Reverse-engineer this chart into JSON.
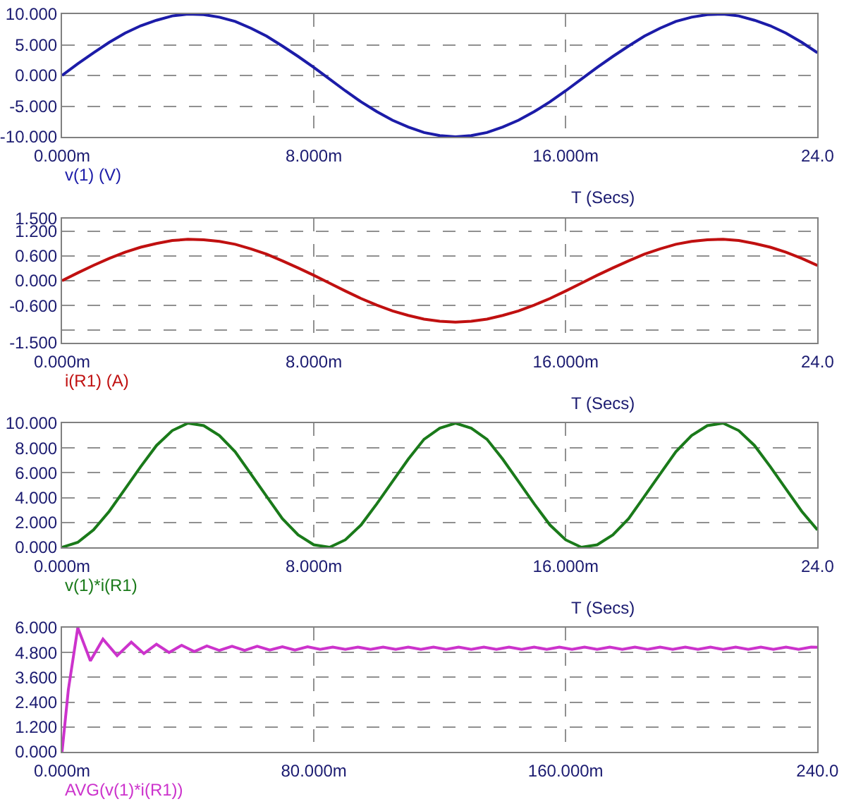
{
  "chart_data": [
    {
      "type": "line",
      "xlabel": "T (Secs)",
      "grid": true,
      "x": [
        0,
        0.5,
        1,
        1.5,
        2,
        2.5,
        3,
        3.5,
        4,
        4.5,
        5,
        5.5,
        6,
        6.5,
        7,
        7.5,
        8,
        8.5,
        9,
        9.5,
        10,
        10.5,
        11,
        11.5,
        12,
        12.5,
        13,
        13.5,
        14,
        14.5,
        15,
        15.5,
        16,
        16.5,
        17,
        17.5,
        18,
        18.5,
        19,
        19.5,
        20,
        20.5,
        21,
        21.5,
        22,
        22.5,
        23,
        23.5,
        24
      ],
      "series": [
        {
          "name": "v(1) (V)",
          "color": "#1c1ca8",
          "values": [
            0,
            1.9,
            3.7,
            5.4,
            6.9,
            8.1,
            9.0,
            9.7,
            10.0,
            9.9,
            9.5,
            8.8,
            7.7,
            6.4,
            4.8,
            3.1,
            1.3,
            -0.6,
            -2.5,
            -4.3,
            -5.9,
            -7.3,
            -8.4,
            -9.3,
            -9.8,
            -10.0,
            -9.8,
            -9.3,
            -8.4,
            -7.3,
            -5.9,
            -4.3,
            -2.5,
            -0.6,
            1.3,
            3.1,
            4.8,
            6.4,
            7.7,
            8.8,
            9.5,
            9.9,
            10.0,
            9.7,
            9.0,
            8.1,
            6.9,
            5.4,
            3.7
          ]
        }
      ],
      "xlim": [
        0,
        24
      ],
      "xticks": [
        {
          "value": 0,
          "label": "0.000m"
        },
        {
          "value": 8,
          "label": "8.000m"
        },
        {
          "value": 16,
          "label": "16.000m"
        },
        {
          "value": 24,
          "label": "24.0"
        }
      ],
      "ylim": [
        -10,
        10
      ],
      "yticks": [
        {
          "value": -10,
          "label": "-10.000"
        },
        {
          "value": -5,
          "label": "-5.000"
        },
        {
          "value": 0,
          "label": "0.000"
        },
        {
          "value": 5,
          "label": "5.000"
        },
        {
          "value": 10,
          "label": "10.000"
        }
      ]
    },
    {
      "type": "line",
      "xlabel": "T (Secs)",
      "grid": true,
      "x": [
        0,
        0.5,
        1,
        1.5,
        2,
        2.5,
        3,
        3.5,
        4,
        4.5,
        5,
        5.5,
        6,
        6.5,
        7,
        7.5,
        8,
        8.5,
        9,
        9.5,
        10,
        10.5,
        11,
        11.5,
        12,
        12.5,
        13,
        13.5,
        14,
        14.5,
        15,
        15.5,
        16,
        16.5,
        17,
        17.5,
        18,
        18.5,
        19,
        19.5,
        20,
        20.5,
        21,
        21.5,
        22,
        22.5,
        23,
        23.5,
        24
      ],
      "series": [
        {
          "name": "i(R1) (A)",
          "color": "#c01010",
          "values": [
            0,
            0.19,
            0.37,
            0.54,
            0.69,
            0.81,
            0.9,
            0.97,
            1.0,
            0.99,
            0.95,
            0.88,
            0.77,
            0.64,
            0.48,
            0.31,
            0.13,
            -0.06,
            -0.25,
            -0.43,
            -0.59,
            -0.73,
            -0.84,
            -0.93,
            -0.98,
            -1.0,
            -0.98,
            -0.93,
            -0.84,
            -0.73,
            -0.59,
            -0.43,
            -0.25,
            -0.06,
            0.13,
            0.31,
            0.48,
            0.64,
            0.77,
            0.88,
            0.95,
            0.99,
            1.0,
            0.97,
            0.9,
            0.81,
            0.69,
            0.54,
            0.37
          ]
        }
      ],
      "xlim": [
        0,
        24
      ],
      "xticks": [
        {
          "value": 0,
          "label": "0.000m"
        },
        {
          "value": 8,
          "label": "8.000m"
        },
        {
          "value": 16,
          "label": "16.000m"
        },
        {
          "value": 24,
          "label": "24.0"
        }
      ],
      "ylim": [
        -1.5,
        1.5
      ],
      "yticks": [
        {
          "value": -1.5,
          "label": "-1.500"
        },
        {
          "value": -1.2,
          "label": null
        },
        {
          "value": -0.6,
          "label": "-0.600"
        },
        {
          "value": 0,
          "label": "0.000"
        },
        {
          "value": 0.6,
          "label": "0.600"
        },
        {
          "value": 1.2,
          "label": "1.200"
        },
        {
          "value": 1.5,
          "label": "1.500"
        }
      ]
    },
    {
      "type": "line",
      "xlabel": "T (Secs)",
      "grid": true,
      "x": [
        0,
        0.5,
        1,
        1.5,
        2,
        2.5,
        3,
        3.5,
        4,
        4.5,
        5,
        5.5,
        6,
        6.5,
        7,
        7.5,
        8,
        8.5,
        9,
        9.5,
        10,
        10.5,
        11,
        11.5,
        12,
        12.5,
        13,
        13.5,
        14,
        14.5,
        15,
        15.5,
        16,
        16.5,
        17,
        17.5,
        18,
        18.5,
        19,
        19.5,
        20,
        20.5,
        21,
        21.5,
        22,
        22.5,
        23,
        23.5,
        24
      ],
      "series": [
        {
          "name": "v(1)*i(R1)",
          "color": "#1a7a1a",
          "values": [
            0,
            0.4,
            1.4,
            2.9,
            4.7,
            6.5,
            8.2,
            9.4,
            10.0,
            9.8,
            9.0,
            7.7,
            5.9,
            4.1,
            2.3,
            1.0,
            0.2,
            0.0,
            0.6,
            1.8,
            3.5,
            5.3,
            7.1,
            8.7,
            9.6,
            10.0,
            9.6,
            8.7,
            7.1,
            5.3,
            3.5,
            1.8,
            0.6,
            0.0,
            0.2,
            1.0,
            2.3,
            4.1,
            5.9,
            7.7,
            9.0,
            9.8,
            10.0,
            9.4,
            8.2,
            6.5,
            4.7,
            2.9,
            1.4
          ]
        }
      ],
      "xlim": [
        0,
        24
      ],
      "xticks": [
        {
          "value": 0,
          "label": "0.000m"
        },
        {
          "value": 8,
          "label": "8.000m"
        },
        {
          "value": 16,
          "label": "16.000m"
        },
        {
          "value": 24,
          "label": "24.0"
        }
      ],
      "ylim": [
        0,
        10
      ],
      "yticks": [
        {
          "value": 0,
          "label": "0.000"
        },
        {
          "value": 2,
          "label": "2.000"
        },
        {
          "value": 4,
          "label": "4.000"
        },
        {
          "value": 6,
          "label": "6.000"
        },
        {
          "value": 8,
          "label": "8.000"
        },
        {
          "value": 10,
          "label": "10.000"
        }
      ]
    },
    {
      "type": "line",
      "grid": true,
      "x": [
        0,
        2,
        5,
        9,
        13,
        17.5,
        22,
        26,
        30,
        34,
        38,
        42,
        46,
        50,
        54,
        58,
        62,
        66,
        70,
        74,
        78,
        82,
        86,
        90,
        94,
        98,
        102,
        106,
        110,
        114,
        118,
        122,
        126,
        130,
        134,
        138,
        142,
        146,
        150,
        154,
        158,
        162,
        166,
        170,
        174,
        178,
        182,
        186,
        190,
        194,
        198,
        202,
        206,
        210,
        214,
        218,
        222,
        226,
        230,
        234,
        238,
        240
      ],
      "series": [
        {
          "name": "AVG(v(1)*i(R1))",
          "color": "#cc33cc",
          "values": [
            0,
            3.0,
            6.0,
            4.4,
            5.45,
            4.65,
            5.3,
            4.75,
            5.2,
            4.8,
            5.15,
            4.85,
            5.12,
            4.9,
            5.1,
            4.9,
            5.1,
            4.92,
            5.08,
            4.92,
            5.08,
            4.95,
            5.06,
            4.95,
            5.06,
            4.95,
            5.06,
            4.95,
            5.06,
            4.95,
            5.06,
            4.95,
            5.06,
            4.95,
            5.06,
            4.95,
            5.06,
            4.95,
            5.06,
            4.95,
            5.06,
            4.95,
            5.06,
            4.95,
            5.06,
            4.95,
            5.06,
            4.95,
            5.06,
            4.95,
            5.06,
            4.95,
            5.06,
            4.95,
            5.06,
            4.95,
            5.06,
            4.95,
            5.06,
            4.95,
            5.06,
            5.05
          ]
        }
      ],
      "xlim": [
        0,
        240
      ],
      "xticks": [
        {
          "value": 0,
          "label": "0.000m"
        },
        {
          "value": 80,
          "label": "80.000m"
        },
        {
          "value": 160,
          "label": "160.000m"
        },
        {
          "value": 240,
          "label": "240.0"
        }
      ],
      "ylim": [
        0,
        6
      ],
      "yticks": [
        {
          "value": 0,
          "label": "0.000"
        },
        {
          "value": 1.2,
          "label": "1.200"
        },
        {
          "value": 2.4,
          "label": "2.400"
        },
        {
          "value": 3.6,
          "label": "3.600"
        },
        {
          "value": 4.8,
          "label": "4.800"
        },
        {
          "value": 6,
          "label": "6.000"
        }
      ]
    }
  ]
}
